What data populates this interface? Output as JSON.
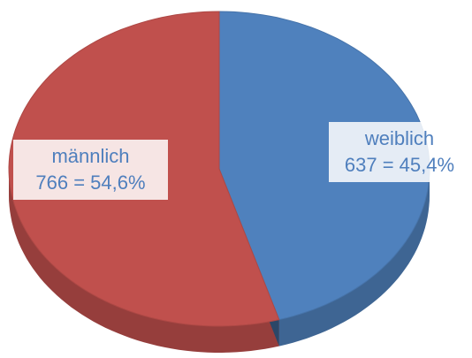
{
  "chart_data": {
    "type": "pie",
    "categories": [
      "männlich",
      "weiblich"
    ],
    "values": [
      766,
      637
    ],
    "value_labels": [
      "766 = 54,6%",
      "637 = 45,4%"
    ],
    "colors": [
      "#c0504d",
      "#4f81bd"
    ],
    "start": "weiblich-top-clockwise"
  }
}
